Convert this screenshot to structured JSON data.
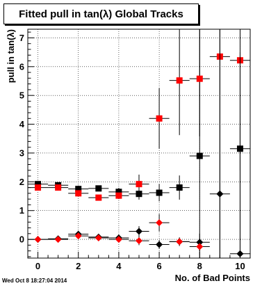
{
  "chart_data": {
    "type": "scatter",
    "title": "Fitted pull in tan(λ)  Global Tracks",
    "xlabel": "No. of Bad Points",
    "ylabel": "pull in tan(λ)",
    "xlim": [
      -0.5,
      10.5
    ],
    "ylim": [
      -0.65,
      7.3
    ],
    "x_ticks": [
      "0",
      "2",
      "4",
      "6",
      "8",
      "10"
    ],
    "y_ticks": [
      "0",
      "1",
      "2",
      "3",
      "4",
      "5",
      "6",
      "7"
    ],
    "grid": true,
    "series": [
      {
        "marker": "square",
        "color": "#000000",
        "points": [
          {
            "x": 0,
            "y": 1.92,
            "ey": 0.08
          },
          {
            "x": 1,
            "y": 1.88,
            "ey": 0.08
          },
          {
            "x": 2,
            "y": 1.75,
            "ey": 0.12
          },
          {
            "x": 3,
            "y": 1.77,
            "ey": 0.1
          },
          {
            "x": 4,
            "y": 1.65,
            "ey": 0.14
          },
          {
            "x": 5,
            "y": 1.58,
            "ey": 0.2
          },
          {
            "x": 6,
            "y": 1.62,
            "ey": 0.3
          },
          {
            "x": 7,
            "y": 1.8,
            "ey": 0.42
          },
          {
            "x": 8,
            "y": 2.9,
            "ey": 4.4
          },
          {
            "x": 10,
            "y": 3.15,
            "ey": 0.75
          }
        ]
      },
      {
        "marker": "square",
        "color": "#ff0000",
        "points": [
          {
            "x": 0,
            "y": 1.8,
            "ey": 0.07
          },
          {
            "x": 1,
            "y": 1.8,
            "ey": 0.07
          },
          {
            "x": 2,
            "y": 1.6,
            "ey": 0.1
          },
          {
            "x": 3,
            "y": 1.45,
            "ey": 0.09
          },
          {
            "x": 4,
            "y": 1.52,
            "ey": 0.12
          },
          {
            "x": 5,
            "y": 1.92,
            "ey": 0.33
          },
          {
            "x": 6,
            "y": 4.2,
            "ey": 1.05
          },
          {
            "x": 7,
            "y": 5.52,
            "ey": 1.9
          },
          {
            "x": 8,
            "y": 5.58,
            "ey": 2.0
          },
          {
            "x": 9,
            "y": 6.35,
            "ey": 7.0
          },
          {
            "x": 10,
            "y": 6.22,
            "ey": 7.0
          }
        ]
      },
      {
        "marker": "diamond",
        "color": "#000000",
        "points": [
          {
            "x": 0,
            "y": 0.0,
            "ey": 0.02
          },
          {
            "x": 1,
            "y": 0.02,
            "ey": 0.03
          },
          {
            "x": 2,
            "y": 0.18,
            "ey": 0.1
          },
          {
            "x": 3,
            "y": 0.08,
            "ey": 0.08
          },
          {
            "x": 4,
            "y": 0.05,
            "ey": 0.1
          },
          {
            "x": 5,
            "y": 0.28,
            "ey": 0.18
          },
          {
            "x": 6,
            "y": -0.18,
            "ey": 0.15
          },
          {
            "x": 7,
            "y": -0.08,
            "ey": 0.12
          },
          {
            "x": 8,
            "y": -0.1,
            "ey": 0.3
          },
          {
            "x": 9,
            "y": 1.58,
            "ey": 7.0
          },
          {
            "x": 10,
            "y": -0.5,
            "ey": 7.0
          }
        ]
      },
      {
        "marker": "diamond",
        "color": "#ff0000",
        "points": [
          {
            "x": 0,
            "y": 0.0,
            "ey": 0.02
          },
          {
            "x": 1,
            "y": 0.0,
            "ey": 0.03
          },
          {
            "x": 2,
            "y": 0.12,
            "ey": 0.08
          },
          {
            "x": 3,
            "y": 0.05,
            "ey": 0.07
          },
          {
            "x": 4,
            "y": 0.0,
            "ey": 0.08
          },
          {
            "x": 5,
            "y": -0.05,
            "ey": 0.15
          },
          {
            "x": 6,
            "y": 0.58,
            "ey": 0.3
          },
          {
            "x": 7,
            "y": -0.08,
            "ey": 0.15
          },
          {
            "x": 8,
            "y": -0.25,
            "ey": 0.15
          }
        ]
      }
    ]
  },
  "footer": {
    "timestamp": "Wed Oct  8 18:27:04 2014"
  }
}
